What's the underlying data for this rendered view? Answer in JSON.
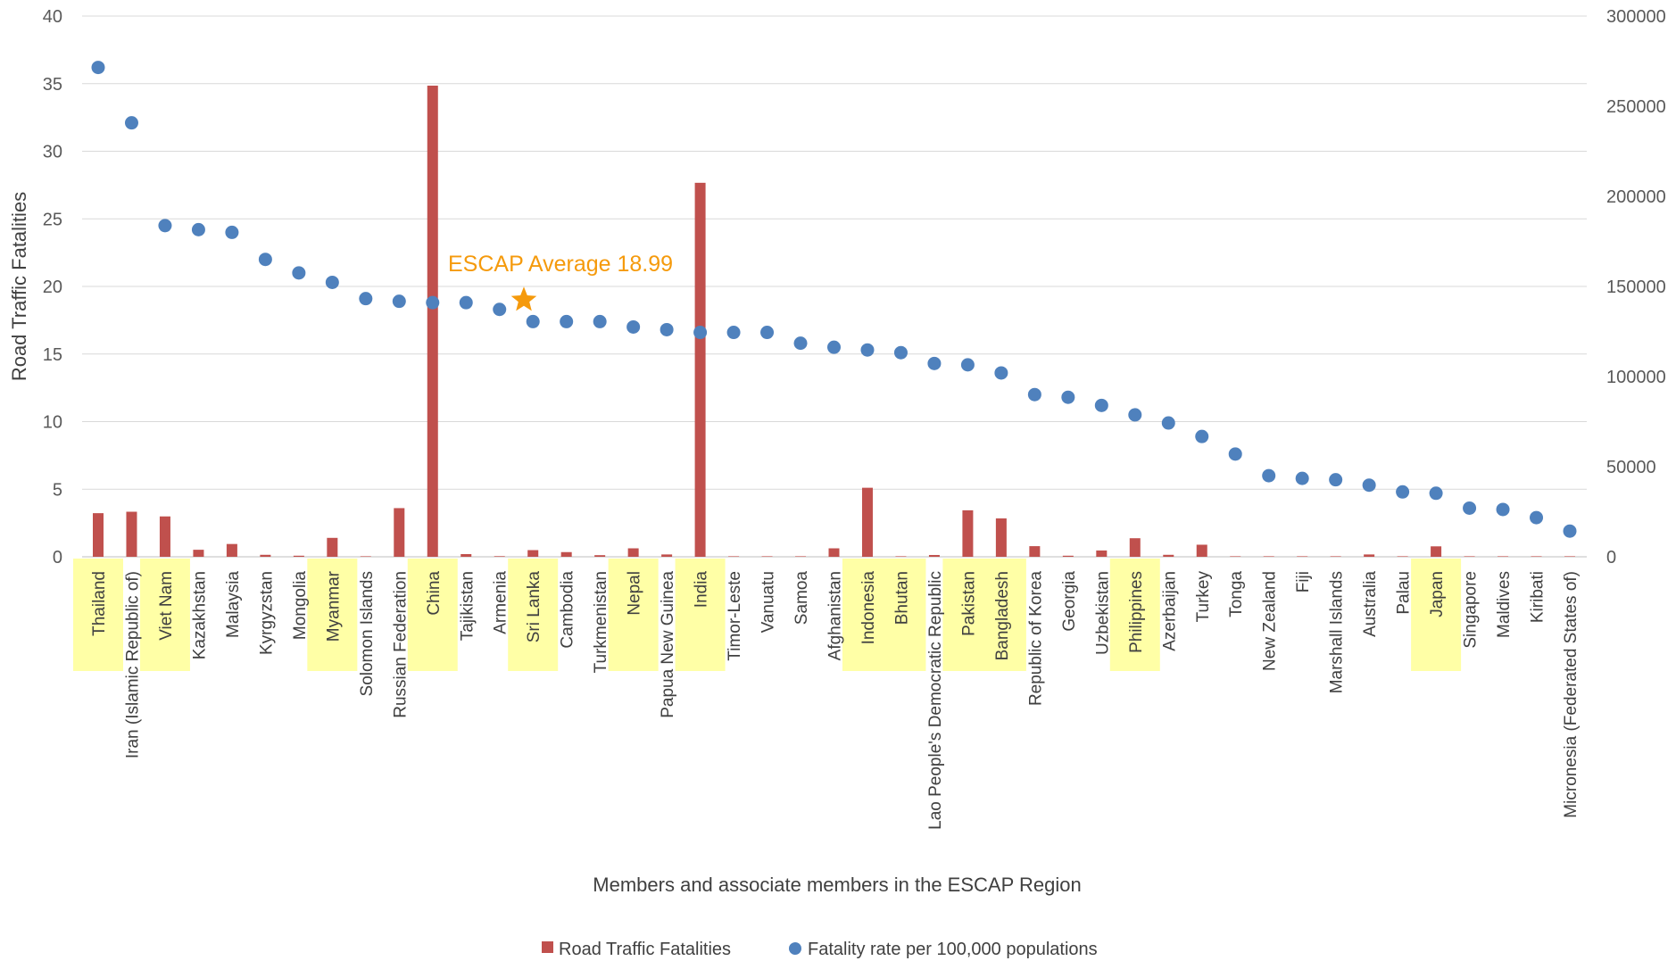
{
  "chart_data": {
    "type": "bar+scatter",
    "title": "",
    "xlabel": "Members and associate members in the ESCAP Region",
    "ylabel": "Road Traffic Fatalities",
    "ylim": [
      0,
      40
    ],
    "y_ticks": [
      "0",
      "5",
      "10",
      "15",
      "20",
      "25",
      "30",
      "35",
      "40"
    ],
    "y2lim": [
      0,
      300000
    ],
    "y2_ticks": [
      "0",
      "50000",
      "100000",
      "150000",
      "200000",
      "250000",
      "300000"
    ],
    "grid": true,
    "legend_position": "bottom",
    "categories": [
      "Thailand",
      "Iran (Islamic Republic of)",
      "Viet Nam",
      "Kazakhstan",
      "Malaysia",
      "Kyrgyzstan",
      "Mongolia",
      "Myanmar",
      "Solomon Islands",
      "Russian Federation",
      "China",
      "Tajikistan",
      "Armenia",
      "Sri Lanka",
      "Cambodia",
      "Turkmenistan",
      "Nepal",
      "Papua New Guinea",
      "India",
      "Timor-Leste",
      "Vanuatu",
      "Samoa",
      "Afghanistan",
      "Indonesia",
      "Bhutan",
      "Lao People's Democratic Republic",
      "Pakistan",
      "Bangladesh",
      "Republic of Korea",
      "Georgia",
      "Uzbekistan",
      "Philippines",
      "Azerbaijan",
      "Turkey",
      "Tonga",
      "New Zealand",
      "Fiji",
      "Marshall Islands",
      "Australia",
      "Palau",
      "Japan",
      "Singapore",
      "Maldives",
      "Kiribati",
      "Micronesia (Federated States of)"
    ],
    "highlighted": [
      "Thailand",
      "Viet Nam",
      "Myanmar",
      "China",
      "Sri Lanka",
      "Nepal",
      "India",
      "Indonesia",
      "Bhutan",
      "Pakistan",
      "Bangladesh",
      "Philippines",
      "Japan"
    ],
    "highlight_color": "#FFFFA6",
    "series": [
      {
        "name": "Road Traffic Fatalities",
        "type": "bar",
        "axis": "right",
        "color": "#C0504D",
        "values": [
          24200,
          25000,
          22400,
          3900,
          7100,
          1100,
          600,
          10500,
          100,
          27000,
          261400,
          1500,
          350,
          3700,
          2600,
          900,
          4700,
          1300,
          207500,
          200,
          50,
          50,
          4700,
          38300,
          150,
          1000,
          25800,
          21300,
          5900,
          600,
          3500,
          10300,
          1100,
          6700,
          10,
          300,
          100,
          10,
          1300,
          10,
          5800,
          150,
          20,
          10,
          10
        ]
      },
      {
        "name": "Fatality rate per 100,000 populations",
        "type": "scatter",
        "axis": "left",
        "color": "#4F81BD",
        "values": [
          36.2,
          32.1,
          24.5,
          24.2,
          24.0,
          22.0,
          21.0,
          20.3,
          19.1,
          18.9,
          18.8,
          18.8,
          18.3,
          17.4,
          17.4,
          17.4,
          17.0,
          16.8,
          16.6,
          16.6,
          16.6,
          15.8,
          15.5,
          15.3,
          15.1,
          14.3,
          14.2,
          13.6,
          12.0,
          11.8,
          11.2,
          10.5,
          9.9,
          8.9,
          7.6,
          6.0,
          5.8,
          5.7,
          5.3,
          4.8,
          4.7,
          3.6,
          3.5,
          2.9,
          1.9
        ]
      }
    ],
    "annotations": [
      {
        "text": "ESCAP Average 18.99",
        "value": 18.99,
        "axis": "left",
        "marker": "star",
        "color": "#F59A0C"
      }
    ]
  }
}
